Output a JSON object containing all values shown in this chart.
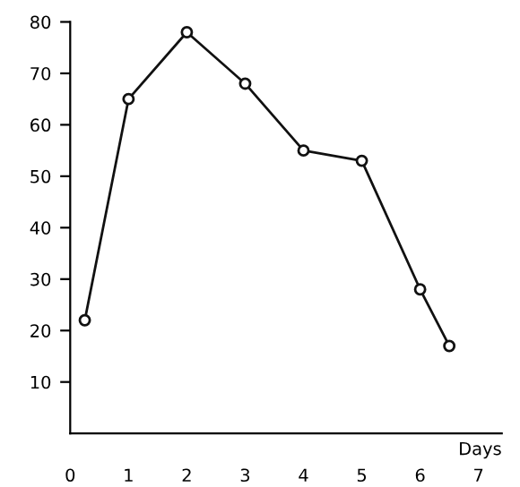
{
  "chart_data": {
    "type": "line",
    "xlabel": "Days",
    "x": [
      0.25,
      1,
      2,
      3,
      4,
      5,
      6,
      6.5
    ],
    "series": [
      {
        "color": "#111111",
        "values": [
          22,
          65,
          78,
          68,
          55,
          53,
          28,
          17
        ]
      }
    ],
    "xlim": [
      0,
      7.4
    ],
    "xticks": [
      0,
      1,
      2,
      3,
      4,
      5,
      6,
      7
    ],
    "ylim": [
      0,
      80
    ],
    "yticks": [
      10,
      20,
      30,
      40,
      50,
      60,
      70,
      80
    ],
    "marker": "circle",
    "line_style": "solid",
    "grid": false,
    "legend": false
  }
}
